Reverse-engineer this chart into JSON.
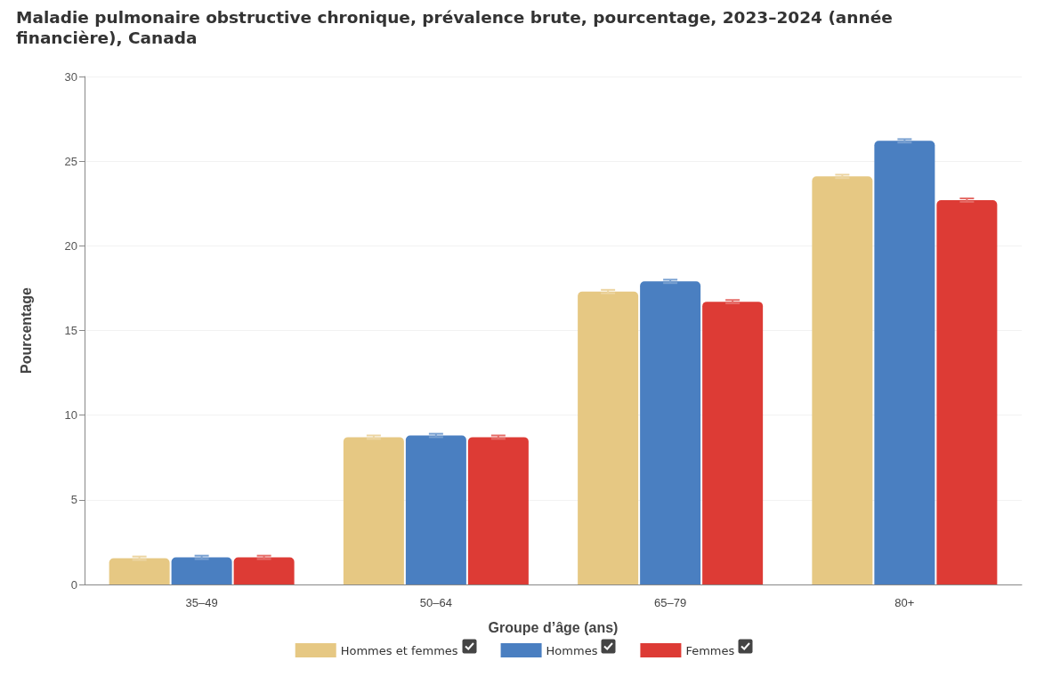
{
  "chart_data": {
    "type": "bar",
    "title": "Maladie pulmonaire obstructive chronique, prévalence brute, pourcentage, 2023–2024 (année financière), Canada",
    "xlabel": "Groupe d’âge (ans)",
    "ylabel": "Pourcentage",
    "categories": [
      "35–49",
      "50–64",
      "65–79",
      "80+"
    ],
    "series": [
      {
        "name": "Hommes et femmes",
        "color": "#e6c883",
        "values": [
          1.55,
          8.7,
          17.3,
          24.1
        ],
        "errors": [
          0.1,
          0.1,
          0.1,
          0.1
        ]
      },
      {
        "name": "Hommes",
        "color": "#4a7fc1",
        "values": [
          1.6,
          8.8,
          17.9,
          26.2
        ],
        "errors": [
          0.1,
          0.1,
          0.1,
          0.1
        ]
      },
      {
        "name": "Femmes",
        "color": "#dd3b35",
        "values": [
          1.6,
          8.7,
          16.7,
          22.7
        ],
        "errors": [
          0.1,
          0.1,
          0.1,
          0.1
        ]
      }
    ],
    "ylim": [
      0,
      30
    ],
    "yticks": [
      0,
      5,
      10,
      15,
      20,
      25,
      30
    ],
    "grid": "y",
    "legend": "bottom"
  }
}
